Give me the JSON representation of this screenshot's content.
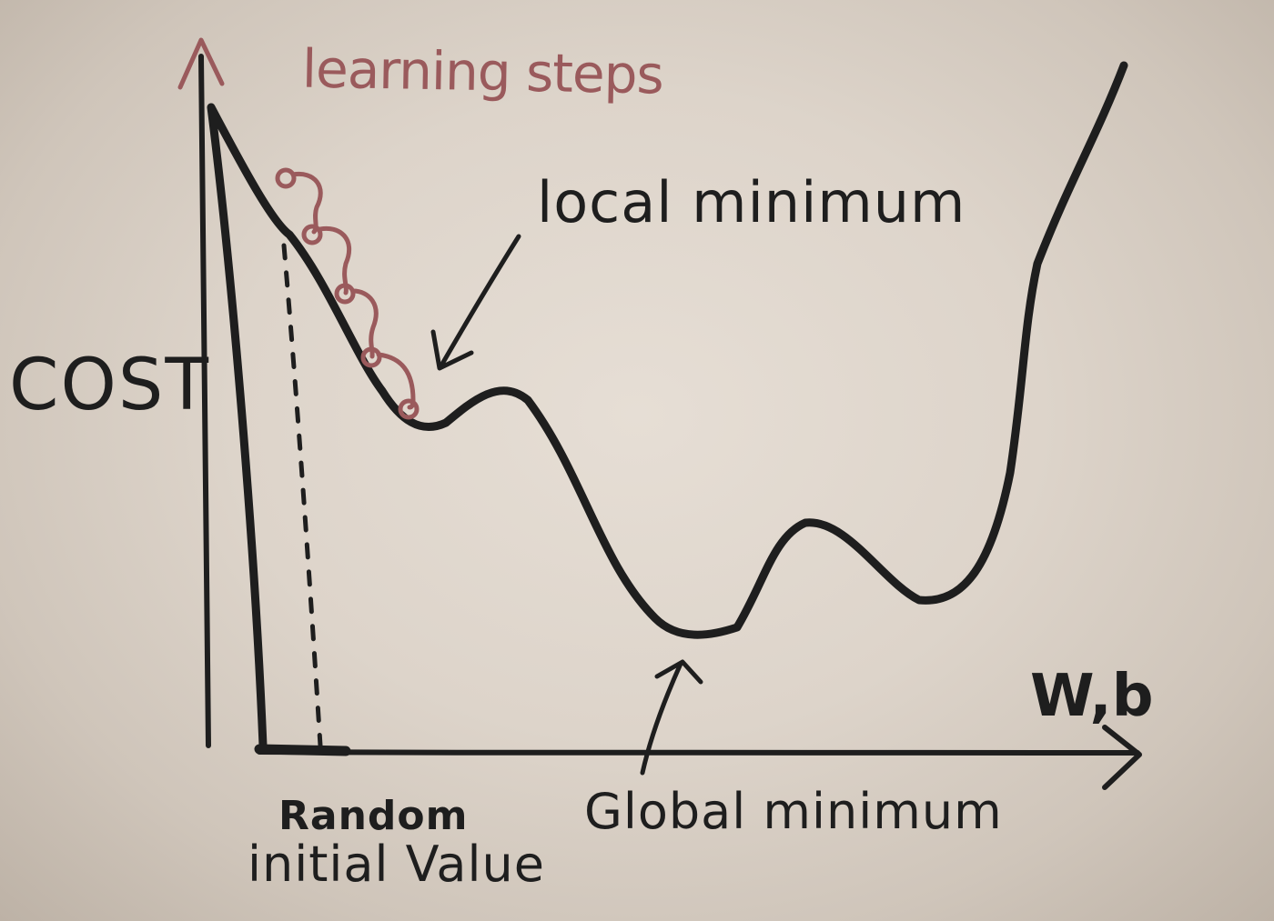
{
  "colors": {
    "board": "#d8cfc5",
    "ink": "#1e1e1e",
    "maroon": "#9a5a5c"
  },
  "labels": {
    "learning_steps": "learning steps",
    "local_minimum": "local minimum",
    "cost": "COST",
    "wb": "W,b",
    "global_minimum": "Global minimum",
    "random": "Random",
    "initial_value": "initial Value"
  }
}
